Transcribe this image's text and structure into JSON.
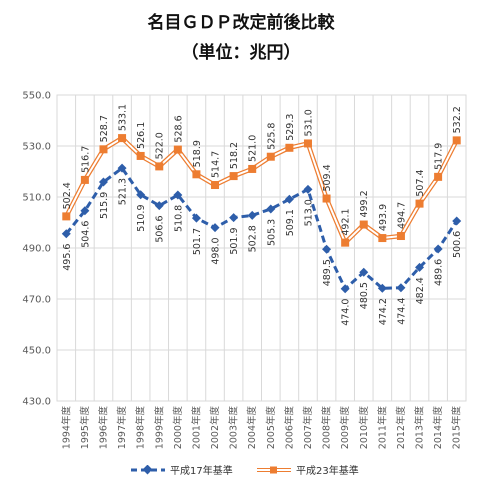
{
  "title": "名目ＧＤＰ改定前後比較",
  "subtitle": "（単位：兆円）",
  "chart_data": {
    "type": "line",
    "categories": [
      "1994年度",
      "1995年度",
      "1996年度",
      "1997年度",
      "1998年度",
      "1999年度",
      "2000年度",
      "2001年度",
      "2002年度",
      "2003年度",
      "2004年度",
      "2005年度",
      "2006年度",
      "2007年度",
      "2008年度",
      "2009年度",
      "2010年度",
      "2011年度",
      "2012年度",
      "2013年度",
      "2014年度",
      "2015年度"
    ],
    "ylim": [
      430.0,
      550.0
    ],
    "yticks": [
      "430.0",
      "450.0",
      "470.0",
      "490.0",
      "510.0",
      "530.0",
      "550.0"
    ],
    "grid": true,
    "legend_position": "bottom",
    "series": [
      {
        "name": "平成17年基準",
        "color": "#2e5eaa",
        "style": "dashed",
        "marker": "diamond",
        "values": [
          495.6,
          504.6,
          515.9,
          521.3,
          510.9,
          506.6,
          510.8,
          501.7,
          498.0,
          501.9,
          502.8,
          505.3,
          509.1,
          513.0,
          489.5,
          474.0,
          480.5,
          474.2,
          474.4,
          482.4,
          489.6,
          500.6
        ],
        "labels": [
          "495.6",
          "504.6",
          "515.9",
          "521.3",
          "510.9",
          "506.6",
          "510.8",
          "501.7",
          "498.0",
          "501.9",
          "502.8",
          "505.3",
          "509.1",
          "513.0",
          "489.5",
          "474.0",
          "480.5",
          "474.2",
          "474.4",
          "482.4",
          "489.6",
          "500.6"
        ]
      },
      {
        "name": "平成23年基準",
        "color": "#ed7d31",
        "style": "solid",
        "marker": "square",
        "values": [
          502.4,
          516.7,
          528.7,
          533.1,
          526.1,
          522.0,
          528.6,
          518.9,
          514.7,
          518.2,
          521.0,
          525.8,
          529.3,
          531.0,
          509.4,
          492.1,
          499.2,
          493.9,
          494.7,
          507.4,
          517.9,
          532.2
        ],
        "labels": [
          "502.4",
          "516.7",
          "528.7",
          "533.1",
          "526.1",
          "522.0",
          "528.6",
          "518.9",
          "514.7",
          "518.2",
          "521.0",
          "525.8",
          "529.3",
          "531.0",
          "509.4",
          "492.1",
          "499.2",
          "493.9",
          "494.7",
          "507.4",
          "517.9",
          "532.2"
        ]
      }
    ]
  }
}
